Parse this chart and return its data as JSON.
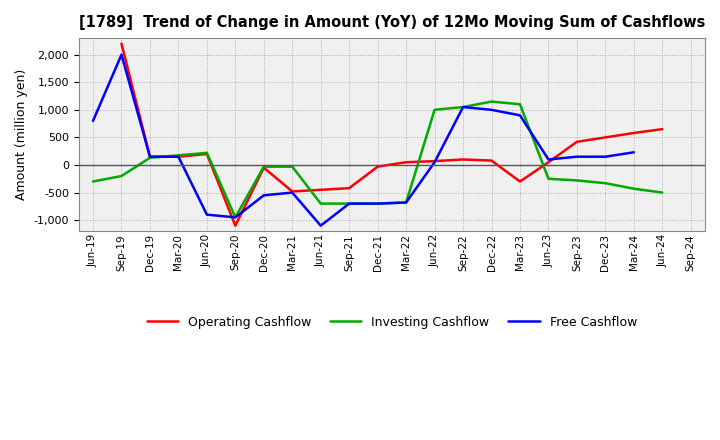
{
  "title": "[1789]  Trend of Change in Amount (YoY) of 12Mo Moving Sum of Cashflows",
  "ylabel": "Amount (million yen)",
  "x_labels": [
    "Jun-19",
    "Sep-19",
    "Dec-19",
    "Mar-20",
    "Jun-20",
    "Sep-20",
    "Dec-20",
    "Mar-21",
    "Jun-21",
    "Sep-21",
    "Dec-21",
    "Mar-22",
    "Jun-22",
    "Sep-22",
    "Dec-22",
    "Mar-23",
    "Jun-23",
    "Sep-23",
    "Dec-23",
    "Mar-24",
    "Jun-24",
    "Sep-24"
  ],
  "operating_cashflow": [
    null,
    2200,
    150,
    150,
    200,
    -1100,
    -50,
    -480,
    -450,
    -420,
    -30,
    50,
    70,
    100,
    80,
    -300,
    50,
    420,
    500,
    580,
    650,
    null
  ],
  "investing_cashflow": [
    -300,
    -200,
    130,
    175,
    220,
    -950,
    -30,
    -30,
    -700,
    -700,
    -700,
    -680,
    1000,
    1050,
    1150,
    1100,
    -250,
    -280,
    -330,
    -430,
    -500,
    null
  ],
  "free_cashflow": [
    800,
    2000,
    150,
    150,
    -900,
    -950,
    -550,
    -500,
    -1100,
    -700,
    -700,
    -680,
    50,
    1050,
    1000,
    900,
    100,
    150,
    150,
    230,
    null,
    null
  ],
  "ylim": [
    -1200,
    2300
  ],
  "yticks": [
    -1000,
    -500,
    0,
    500,
    1000,
    1500,
    2000
  ],
  "operating_color": "#ff0000",
  "investing_color": "#00aa00",
  "free_color": "#0000ff",
  "bg_color": "#ffffff",
  "plot_bg_color": "#f0f0f0",
  "grid_color": "#aaaaaa",
  "linewidth": 1.8,
  "legend_labels": [
    "Operating Cashflow",
    "Investing Cashflow",
    "Free Cashflow"
  ]
}
